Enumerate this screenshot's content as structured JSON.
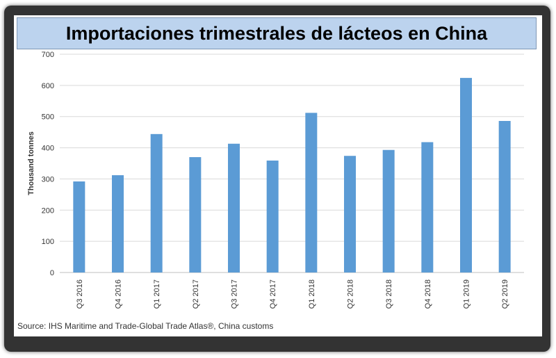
{
  "chart_data": {
    "type": "bar",
    "title": "Importaciones trimestrales de lácteos en China",
    "ylabel": "Thousand tonnes",
    "xlabel": "",
    "categories": [
      "Q3 2016",
      "Q4 2016",
      "Q1 2017",
      "Q2 2017",
      "Q3 2017",
      "Q4 2017",
      "Q1 2018",
      "Q2 2018",
      "Q3 2018",
      "Q4 2018",
      "Q1 2019",
      "Q2 2019"
    ],
    "values": [
      292,
      312,
      444,
      370,
      413,
      359,
      512,
      374,
      393,
      418,
      624,
      486
    ],
    "ylim": [
      0,
      700
    ],
    "yticks": [
      0,
      100,
      200,
      300,
      400,
      500,
      600,
      700
    ],
    "grid": true,
    "bar_color": "#5b9bd5",
    "grid_color": "#d9d9d9"
  },
  "source": "Source: IHS Maritime and Trade-Global  Trade Atlas®, China customs",
  "colors": {
    "frame": "#333333",
    "title_bg": "#bcd3ee"
  }
}
